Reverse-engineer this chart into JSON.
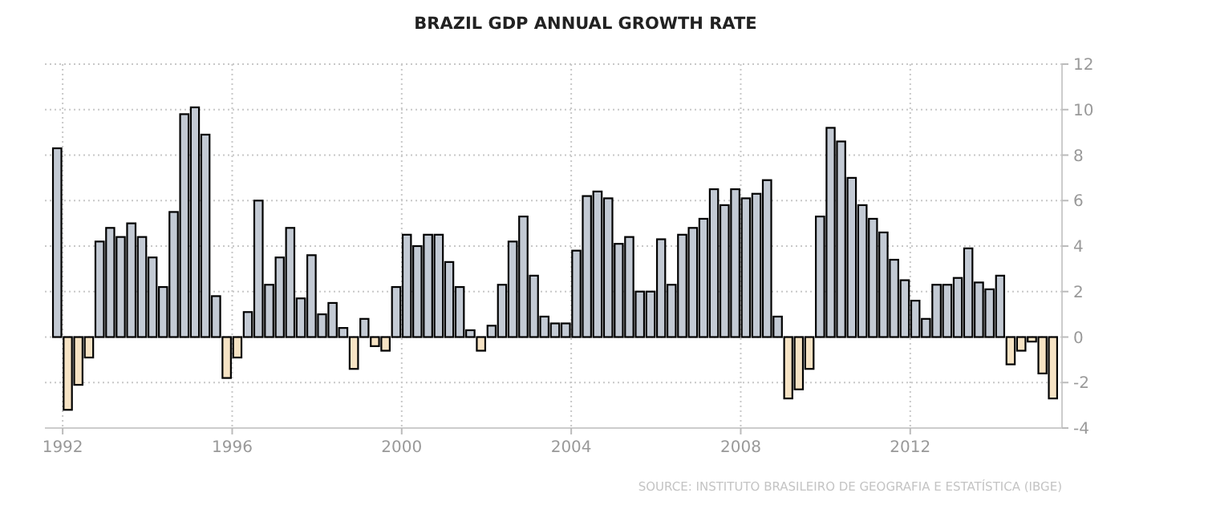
{
  "chart_data": {
    "type": "bar",
    "title": "BRAZIL GDP ANNUAL GROWTH RATE",
    "annotations": [
      "SOURCE: INSTITUTO BRASILEIRO DE GEOGRAFIA E ESTATÍSTICA (IBGE)"
    ],
    "x": [
      "1991-10",
      "1992-01",
      "1992-04",
      "1992-07",
      "1992-10",
      "1993-01",
      "1993-04",
      "1993-07",
      "1993-10",
      "1994-01",
      "1994-04",
      "1994-07",
      "1994-10",
      "1995-01",
      "1995-04",
      "1995-07",
      "1995-10",
      "1996-01",
      "1996-04",
      "1996-07",
      "1996-10",
      "1997-01",
      "1997-04",
      "1997-07",
      "1997-10",
      "1998-01",
      "1998-04",
      "1998-07",
      "1998-10",
      "1999-01",
      "1999-04",
      "1999-07",
      "1999-10",
      "2000-01",
      "2000-04",
      "2000-07",
      "2000-10",
      "2001-01",
      "2001-04",
      "2001-07",
      "2001-10",
      "2002-01",
      "2002-04",
      "2002-07",
      "2002-10",
      "2003-01",
      "2003-04",
      "2003-07",
      "2003-10",
      "2004-01",
      "2004-04",
      "2004-07",
      "2004-10",
      "2005-01",
      "2005-04",
      "2005-07",
      "2005-10",
      "2006-01",
      "2006-04",
      "2006-07",
      "2006-10",
      "2007-01",
      "2007-04",
      "2007-07",
      "2007-10",
      "2008-01",
      "2008-04",
      "2008-07",
      "2008-10",
      "2009-01",
      "2009-04",
      "2009-07",
      "2009-10",
      "2010-01",
      "2010-04",
      "2010-07",
      "2010-10",
      "2011-01",
      "2011-04",
      "2011-07",
      "2011-10",
      "2012-01",
      "2012-04",
      "2012-07",
      "2012-10",
      "2013-01",
      "2013-04",
      "2013-07",
      "2013-10",
      "2014-01",
      "2014-04",
      "2014-07",
      "2014-10",
      "2015-01",
      "2015-04"
    ],
    "values": [
      8.3,
      -3.2,
      -2.1,
      -0.9,
      4.2,
      4.8,
      4.4,
      5.0,
      4.4,
      3.5,
      2.2,
      5.5,
      9.8,
      10.1,
      8.9,
      1.8,
      -1.8,
      -0.9,
      1.1,
      6.0,
      2.3,
      3.5,
      4.8,
      1.7,
      3.6,
      1.0,
      1.5,
      0.4,
      -1.4,
      0.8,
      -0.4,
      -0.6,
      2.2,
      4.5,
      4.0,
      4.5,
      4.5,
      3.3,
      2.2,
      0.3,
      -0.6,
      0.5,
      2.3,
      4.2,
      5.3,
      2.7,
      0.9,
      0.6,
      0.6,
      3.8,
      6.2,
      6.4,
      6.1,
      4.1,
      4.4,
      2.0,
      2.0,
      4.3,
      2.3,
      4.5,
      4.8,
      5.2,
      6.5,
      5.8,
      6.5,
      6.1,
      6.3,
      6.9,
      0.9,
      -2.7,
      -2.3,
      -1.4,
      5.3,
      9.2,
      8.6,
      7.0,
      5.8,
      5.2,
      4.6,
      3.4,
      2.5,
      1.6,
      0.8,
      2.3,
      2.3,
      2.6,
      3.9,
      2.4,
      2.1,
      2.7,
      -1.2,
      -0.6,
      -0.2,
      -1.6,
      -2.7
    ],
    "colors": [
      "#c3cad4",
      "#f6e3c4",
      "#f6e3c4",
      "#f6e3c4",
      "#c3cad4",
      "#c3cad4",
      "#c3cad4",
      "#c3cad4",
      "#c3cad4",
      "#c3cad4",
      "#c3cad4",
      "#c3cad4",
      "#c3cad4",
      "#c3cad4",
      "#c3cad4",
      "#c3cad4",
      "#f6e3c4",
      "#f6e3c4",
      "#c3cad4",
      "#c3cad4",
      "#c3cad4",
      "#c3cad4",
      "#c3cad4",
      "#c3cad4",
      "#c3cad4",
      "#c3cad4",
      "#c3cad4",
      "#c3cad4",
      "#f6e3c4",
      "#c3cad4",
      "#f6e3c4",
      "#f6e3c4",
      "#c3cad4",
      "#c3cad4",
      "#c3cad4",
      "#c3cad4",
      "#c3cad4",
      "#c3cad4",
      "#c3cad4",
      "#c3cad4",
      "#f6e3c4",
      "#c3cad4",
      "#c3cad4",
      "#c3cad4",
      "#c3cad4",
      "#c3cad4",
      "#c3cad4",
      "#c3cad4",
      "#c3cad4",
      "#c3cad4",
      "#c3cad4",
      "#c3cad4",
      "#c3cad4",
      "#c3cad4",
      "#c3cad4",
      "#c3cad4",
      "#c3cad4",
      "#c3cad4",
      "#c3cad4",
      "#c3cad4",
      "#c3cad4",
      "#c3cad4",
      "#c3cad4",
      "#c3cad4",
      "#c3cad4",
      "#c3cad4",
      "#c3cad4",
      "#c3cad4",
      "#c3cad4",
      "#f6e3c4",
      "#f6e3c4",
      "#f6e3c4",
      "#c3cad4",
      "#c3cad4",
      "#c3cad4",
      "#c3cad4",
      "#c3cad4",
      "#c3cad4",
      "#c3cad4",
      "#c3cad4",
      "#c3cad4",
      "#c3cad4",
      "#c3cad4",
      "#c3cad4",
      "#c3cad4",
      "#c3cad4",
      "#c3cad4",
      "#c3cad4",
      "#c3cad4",
      "#c3cad4",
      "#f6e3c4",
      "#f6e3c4",
      "#f6e3c4",
      "#f6e3c4",
      "#f6e3c4"
    ],
    "xlim": [
      "1991-08",
      "2015-08"
    ],
    "xticks": [
      {
        "value": "1992-01",
        "label": "1992"
      },
      {
        "value": "1996-01",
        "label": "1996"
      },
      {
        "value": "2000-01",
        "label": "2000"
      },
      {
        "value": "2004-01",
        "label": "2004"
      },
      {
        "value": "2008-01",
        "label": "2008"
      },
      {
        "value": "2012-01",
        "label": "2012"
      }
    ],
    "ylim": [
      -4,
      12
    ],
    "yticks": [
      -4,
      -2,
      0,
      2,
      4,
      6,
      8,
      10,
      12
    ],
    "grid": true
  }
}
